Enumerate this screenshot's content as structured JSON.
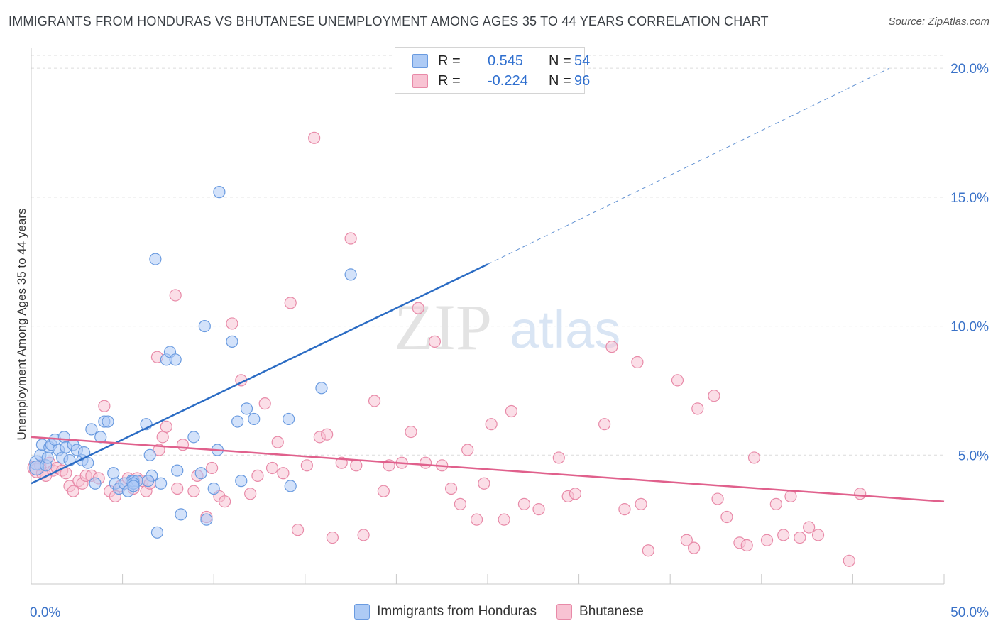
{
  "header": {
    "title": "IMMIGRANTS FROM HONDURAS VS BHUTANESE UNEMPLOYMENT AMONG AGES 35 TO 44 YEARS CORRELATION CHART",
    "source": "Source: ZipAtlas.com"
  },
  "watermark": {
    "zip": "ZIP",
    "atlas": "atlas"
  },
  "legend": {
    "r_label": "R =",
    "n_label": "N =",
    "rows": [
      {
        "name": "Immigrants from Honduras",
        "r": "0.545",
        "n": "54",
        "fill": "#aecbf5",
        "stroke": "#6a9be0"
      },
      {
        "name": "Bhutanese",
        "r": "-0.224",
        "n": "96",
        "fill": "#f8c3d3",
        "stroke": "#e88aa8"
      }
    ]
  },
  "colors": {
    "blue_point": "#aecbf5",
    "blue_stroke": "#6a9be0",
    "blue_line": "#2b6cc4",
    "pink_point": "#f8c3d3",
    "pink_stroke": "#e88aa8",
    "pink_line": "#e0608c",
    "tick_label": "#3a72c8",
    "grid": "#dcdcdc"
  },
  "chart_data": {
    "type": "scatter",
    "title": "IMMIGRANTS FROM HONDURAS VS BHUTANESE UNEMPLOYMENT AMONG AGES 35 TO 44 YEARS CORRELATION CHART",
    "xlabel": "",
    "ylabel": "Unemployment Among Ages 35 to 44 years",
    "xlim": [
      0,
      50
    ],
    "ylim": [
      0,
      20.5
    ],
    "x_tick_labels": [
      "0.0%",
      "50.0%"
    ],
    "y_ticks": [
      5,
      10,
      15,
      20
    ],
    "y_tick_labels": [
      "5.0%",
      "10.0%",
      "15.0%",
      "20.0%"
    ],
    "grid": true,
    "legend_position": "top-center",
    "series": [
      {
        "name": "Immigrants from Honduras",
        "r": 0.545,
        "n": 54,
        "trend": {
          "x0": 0,
          "y0": 3.9,
          "x1": 25,
          "y1": 12.4,
          "extend_to_x": 47,
          "extend_to_y": 20.0
        },
        "points": [
          [
            0.3,
            4.7
          ],
          [
            0.3,
            4.5
          ],
          [
            0.5,
            5.0
          ],
          [
            0.6,
            5.4
          ],
          [
            0.8,
            4.6
          ],
          [
            0.9,
            4.9
          ],
          [
            1.0,
            5.3
          ],
          [
            1.1,
            5.4
          ],
          [
            1.3,
            5.6
          ],
          [
            1.5,
            5.2
          ],
          [
            1.7,
            4.9
          ],
          [
            1.8,
            5.7
          ],
          [
            1.9,
            5.3
          ],
          [
            2.1,
            4.8
          ],
          [
            2.3,
            5.4
          ],
          [
            2.5,
            5.2
          ],
          [
            2.8,
            4.8
          ],
          [
            2.9,
            5.1
          ],
          [
            3.1,
            4.7
          ],
          [
            3.3,
            6.0
          ],
          [
            3.5,
            3.9
          ],
          [
            3.8,
            5.7
          ],
          [
            4.0,
            6.3
          ],
          [
            4.2,
            6.3
          ],
          [
            4.5,
            4.3
          ],
          [
            4.6,
            3.9
          ],
          [
            4.8,
            3.7
          ],
          [
            5.1,
            3.9
          ],
          [
            5.3,
            3.6
          ],
          [
            5.6,
            4.0
          ],
          [
            5.6,
            3.9
          ],
          [
            5.5,
            4.0
          ],
          [
            5.6,
            4.0
          ],
          [
            5.8,
            4.0
          ],
          [
            5.6,
            3.9
          ],
          [
            5.6,
            3.8
          ],
          [
            6.3,
            6.2
          ],
          [
            6.5,
            5.0
          ],
          [
            6.6,
            4.2
          ],
          [
            6.8,
            12.6
          ],
          [
            6.9,
            2.0
          ],
          [
            7.1,
            3.9
          ],
          [
            7.4,
            8.7
          ],
          [
            7.6,
            9.0
          ],
          [
            7.9,
            8.7
          ],
          [
            8.0,
            4.4
          ],
          [
            8.2,
            2.7
          ],
          [
            8.9,
            5.7
          ],
          [
            9.3,
            4.3
          ],
          [
            9.5,
            10.0
          ],
          [
            10.0,
            3.7
          ],
          [
            10.3,
            15.2
          ],
          [
            11.0,
            9.4
          ],
          [
            11.3,
            6.3
          ]
        ],
        "points_extra": [
          [
            11.5,
            4.0
          ],
          [
            11.8,
            6.8
          ],
          [
            12.2,
            6.4
          ],
          [
            14.1,
            6.4
          ],
          [
            14.2,
            3.8
          ],
          [
            15.9,
            7.6
          ],
          [
            17.5,
            12.0
          ],
          [
            9.6,
            2.5
          ],
          [
            10.2,
            5.2
          ],
          [
            6.4,
            4.0
          ]
        ]
      },
      {
        "name": "Bhutanese",
        "r": -0.224,
        "n": 96,
        "trend": {
          "x0": 0,
          "y0": 5.7,
          "x1": 50,
          "y1": 3.2
        },
        "points": [
          [
            0.2,
            4.5
          ],
          [
            0.3,
            4.4
          ],
          [
            0.5,
            4.6
          ],
          [
            0.6,
            4.3
          ],
          [
            0.8,
            4.2
          ],
          [
            1.0,
            4.7
          ],
          [
            1.2,
            4.4
          ],
          [
            1.4,
            4.5
          ],
          [
            1.7,
            4.4
          ],
          [
            1.9,
            4.3
          ],
          [
            2.1,
            3.8
          ],
          [
            2.3,
            3.6
          ],
          [
            2.6,
            4.0
          ],
          [
            2.8,
            3.9
          ],
          [
            3.0,
            4.2
          ],
          [
            3.3,
            4.2
          ],
          [
            3.7,
            4.1
          ],
          [
            4.0,
            6.9
          ],
          [
            4.3,
            3.6
          ],
          [
            4.6,
            3.4
          ],
          [
            4.9,
            3.8
          ],
          [
            5.3,
            4.1
          ],
          [
            5.6,
            3.7
          ],
          [
            5.8,
            4.1
          ],
          [
            6.1,
            4.0
          ],
          [
            6.3,
            3.6
          ],
          [
            6.5,
            3.9
          ],
          [
            6.9,
            8.8
          ],
          [
            7.0,
            5.2
          ],
          [
            7.2,
            5.7
          ],
          [
            7.4,
            6.1
          ],
          [
            7.9,
            11.2
          ],
          [
            8.0,
            3.7
          ],
          [
            8.3,
            5.4
          ],
          [
            8.9,
            3.6
          ],
          [
            9.1,
            4.2
          ],
          [
            9.6,
            2.6
          ],
          [
            9.9,
            4.5
          ],
          [
            10.3,
            3.4
          ],
          [
            10.6,
            3.2
          ],
          [
            11.0,
            10.1
          ],
          [
            11.5,
            7.9
          ],
          [
            12.0,
            3.5
          ],
          [
            12.4,
            4.2
          ],
          [
            12.8,
            7.0
          ],
          [
            13.2,
            4.5
          ],
          [
            13.5,
            5.5
          ],
          [
            13.8,
            4.3
          ],
          [
            14.2,
            10.9
          ],
          [
            14.6,
            2.1
          ],
          [
            15.1,
            4.6
          ],
          [
            15.5,
            17.3
          ],
          [
            15.8,
            5.7
          ],
          [
            16.2,
            5.8
          ],
          [
            16.5,
            1.8
          ],
          [
            17.0,
            4.7
          ],
          [
            17.5,
            13.4
          ],
          [
            17.8,
            4.6
          ],
          [
            18.2,
            1.9
          ],
          [
            18.8,
            7.1
          ],
          [
            19.3,
            3.6
          ],
          [
            19.6,
            4.6
          ],
          [
            20.3,
            4.7
          ],
          [
            20.8,
            5.9
          ],
          [
            21.2,
            10.7
          ],
          [
            21.6,
            4.7
          ],
          [
            22.1,
            9.4
          ],
          [
            22.5,
            4.6
          ],
          [
            23.0,
            3.7
          ],
          [
            23.5,
            3.1
          ],
          [
            23.9,
            5.2
          ],
          [
            24.4,
            2.5
          ],
          [
            24.8,
            3.9
          ],
          [
            25.2,
            6.2
          ],
          [
            25.9,
            2.5
          ],
          [
            26.3,
            6.7
          ],
          [
            27.0,
            3.1
          ],
          [
            27.8,
            2.9
          ],
          [
            28.9,
            4.9
          ],
          [
            29.4,
            3.4
          ],
          [
            29.8,
            3.5
          ],
          [
            31.4,
            6.2
          ],
          [
            31.8,
            9.2
          ],
          [
            32.5,
            2.9
          ],
          [
            33.2,
            8.6
          ],
          [
            33.4,
            3.1
          ],
          [
            33.8,
            1.3
          ],
          [
            35.4,
            7.9
          ],
          [
            35.9,
            1.7
          ],
          [
            36.3,
            1.4
          ],
          [
            36.5,
            6.8
          ],
          [
            37.4,
            7.3
          ],
          [
            37.6,
            3.3
          ],
          [
            38.1,
            2.6
          ],
          [
            38.8,
            1.6
          ],
          [
            39.2,
            1.5
          ]
        ],
        "points_extra": [
          [
            39.6,
            4.9
          ],
          [
            40.3,
            1.7
          ],
          [
            40.8,
            3.1
          ],
          [
            41.2,
            1.9
          ],
          [
            41.6,
            3.4
          ],
          [
            42.1,
            1.8
          ],
          [
            42.6,
            2.2
          ],
          [
            43.1,
            1.9
          ],
          [
            44.8,
            0.9
          ],
          [
            45.4,
            3.5
          ]
        ]
      }
    ]
  }
}
